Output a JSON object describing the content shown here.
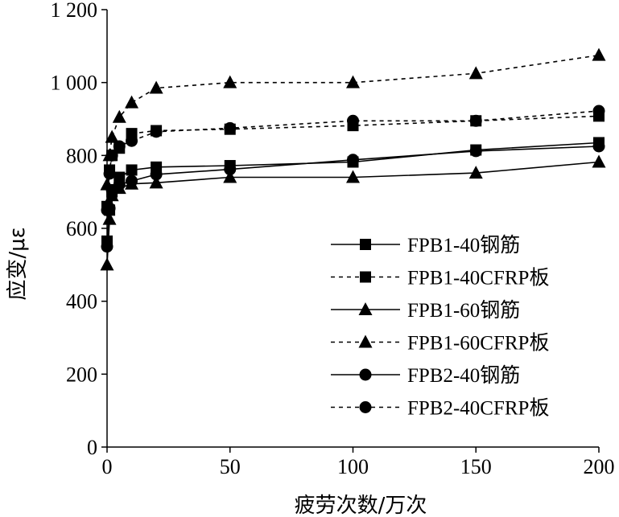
{
  "chart_data": {
    "type": "line",
    "title": "",
    "xlabel": "疲劳次数/万次",
    "ylabel": "应变/με",
    "xlim": [
      0,
      200
    ],
    "ylim": [
      0,
      1200
    ],
    "xticks": [
      0,
      50,
      100,
      150,
      200
    ],
    "yticks": [
      0,
      200,
      400,
      600,
      800,
      1000,
      1200
    ],
    "ytick_labels": [
      "0",
      "200",
      "400",
      "600",
      "800",
      "1 000",
      "1 200"
    ],
    "xtick_labels": [
      "0",
      "50",
      "100",
      "150",
      "200"
    ],
    "grid": false,
    "legend_position": "bottom-right",
    "series": [
      {
        "name": "FPB1-40钢筋",
        "marker": "square",
        "line": "solid",
        "x": [
          0,
          1,
          2,
          5,
          10,
          20,
          50,
          100,
          150,
          200
        ],
        "y": [
          565,
          650,
          700,
          740,
          760,
          768,
          772,
          782,
          815,
          835
        ]
      },
      {
        "name": "FPB1-40CFRP板",
        "marker": "square",
        "line": "dashed",
        "x": [
          0,
          1,
          2,
          5,
          10,
          20,
          50,
          100,
          150,
          200
        ],
        "y": [
          660,
          760,
          800,
          820,
          860,
          868,
          872,
          882,
          895,
          908
        ]
      },
      {
        "name": "FPB1-60钢筋",
        "marker": "triangle",
        "line": "solid",
        "x": [
          0,
          1,
          2,
          5,
          10,
          20,
          50,
          100,
          150,
          200
        ],
        "y": [
          500,
          625,
          690,
          710,
          722,
          725,
          740,
          740,
          752,
          782
        ]
      },
      {
        "name": "FPB1-60CFRP板",
        "marker": "triangle",
        "line": "dashed",
        "x": [
          0,
          1,
          2,
          5,
          10,
          20,
          50,
          100,
          150,
          200
        ],
        "y": [
          720,
          800,
          850,
          905,
          945,
          985,
          1000,
          1000,
          1025,
          1075
        ]
      },
      {
        "name": "FPB2-40钢筋",
        "marker": "circle",
        "line": "solid",
        "x": [
          0,
          1,
          2,
          5,
          10,
          20,
          50,
          100,
          150,
          200
        ],
        "y": [
          550,
          655,
          705,
          720,
          730,
          748,
          762,
          788,
          812,
          825
        ]
      },
      {
        "name": "FPB2-40CFRP板",
        "marker": "circle",
        "line": "dashed",
        "x": [
          0,
          1,
          2,
          5,
          10,
          20,
          50,
          100,
          150,
          200
        ],
        "y": [
          650,
          750,
          800,
          825,
          840,
          865,
          875,
          895,
          895,
          922
        ]
      }
    ]
  }
}
